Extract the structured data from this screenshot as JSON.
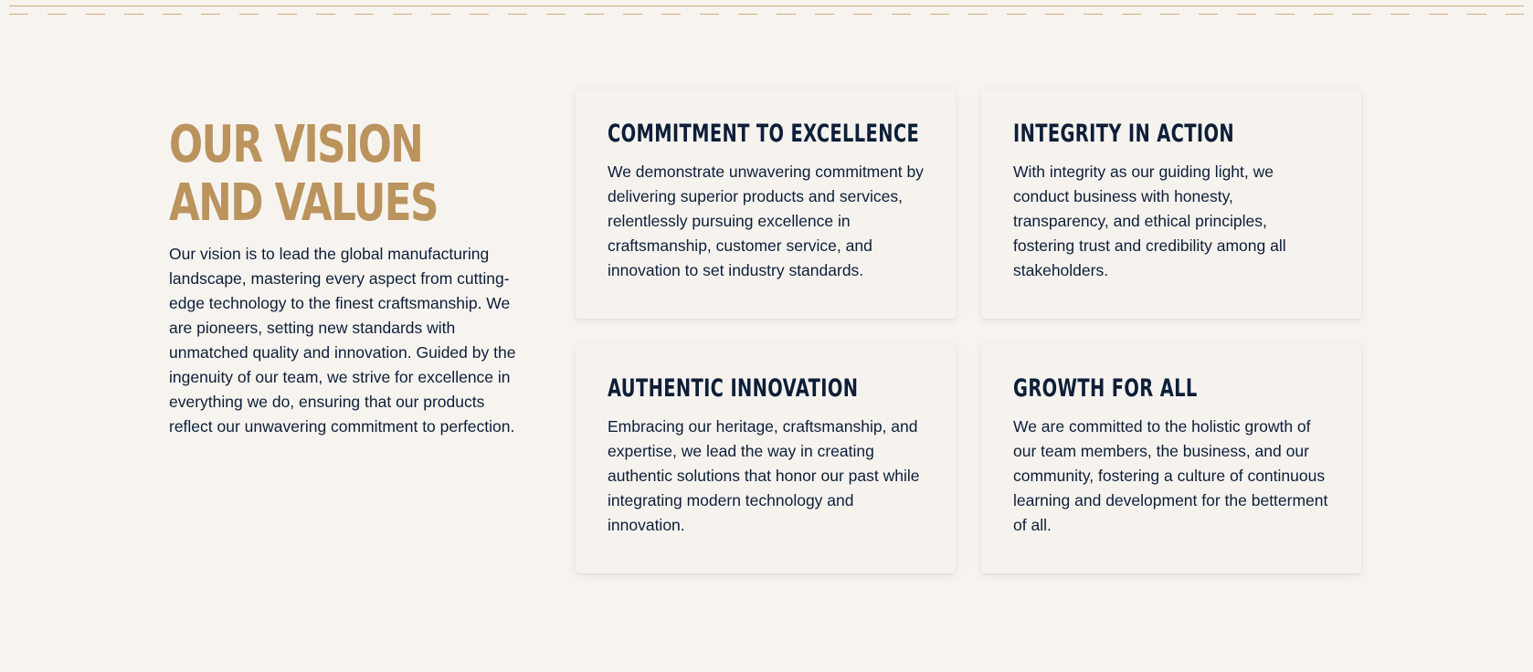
{
  "section": {
    "heading_line1": "OUR VISION",
    "heading_line2": "AND VALUES",
    "intro": "Our vision is to lead the global manufacturing landscape, mastering every aspect from cutting-edge technology to the finest craftsmanship. We are pioneers, setting new standards with unmatched quality and innovation. Guided by the ingenuity of our team, we strive for excellence in everything we do, ensuring that our products reflect our unwavering commitment to perfection."
  },
  "values": [
    {
      "title": "COMMITMENT TO EXCELLENCE",
      "text": "We demonstrate unwavering commitment by delivering superior products and services, relentlessly pursuing excellence in craftsmanship, customer service, and innovation to set industry standards."
    },
    {
      "title": "INTEGRITY IN ACTION",
      "text": "With integrity as our guiding light, we conduct business with honesty, transparency, and ethical principles, fostering trust and credibility among all stakeholders."
    },
    {
      "title": "AUTHENTIC INNOVATION",
      "text": "Embracing our heritage, craftsmanship, and expertise, we lead the way in creating authentic solutions that honor our past while integrating modern technology and innovation."
    },
    {
      "title": "GROWTH FOR ALL",
      "text": "We are committed to the holistic growth of our team members, the business, and our community, fostering a culture of continuous learning and development for the betterment of all."
    }
  ],
  "colors": {
    "background": "#f7f4f0",
    "accent_gold": "#bb935d",
    "navy_text": "#0d1e38",
    "rule": "#d3a97a"
  }
}
